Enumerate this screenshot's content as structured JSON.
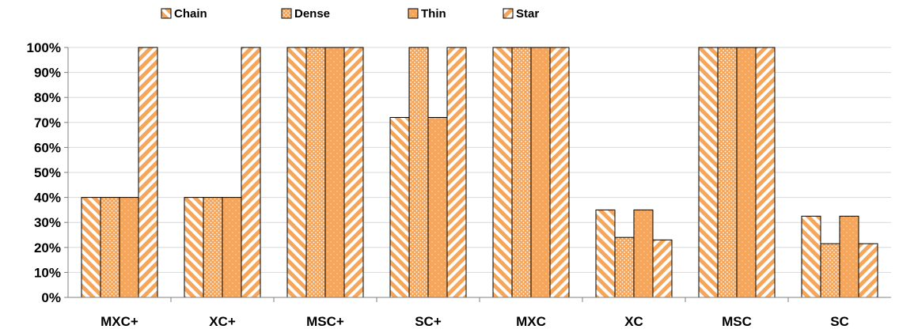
{
  "chart_data": {
    "type": "bar",
    "categories": [
      "MXC+",
      "XC+",
      "MSC+",
      "SC+",
      "MXC",
      "XC",
      "MSC",
      "SC"
    ],
    "series": [
      {
        "name": "Chain",
        "pattern": "diag-back",
        "values": [
          40,
          40,
          100,
          72,
          100,
          35,
          100,
          32.5
        ]
      },
      {
        "name": "Dense",
        "pattern": "dots-dense",
        "values": [
          40,
          40,
          100,
          100,
          100,
          24,
          100,
          21.5
        ]
      },
      {
        "name": "Thin",
        "pattern": "dots-sparse",
        "values": [
          40,
          40,
          100,
          72,
          100,
          35,
          100,
          32.5
        ]
      },
      {
        "name": "Star",
        "pattern": "diag-fwd",
        "values": [
          100,
          100,
          100,
          100,
          100,
          23,
          100,
          21.5
        ]
      }
    ],
    "y_ticks": [
      "0%",
      "10%",
      "20%",
      "30%",
      "40%",
      "50%",
      "60%",
      "70%",
      "80%",
      "90%",
      "100%"
    ],
    "ylim": [
      0,
      100
    ],
    "grid": "horizontal",
    "legend": "top",
    "colors": {
      "fill": "#f5a65b",
      "hatch": "#ffffff",
      "stroke": "#000000",
      "grid": "#d9d9d9"
    }
  }
}
